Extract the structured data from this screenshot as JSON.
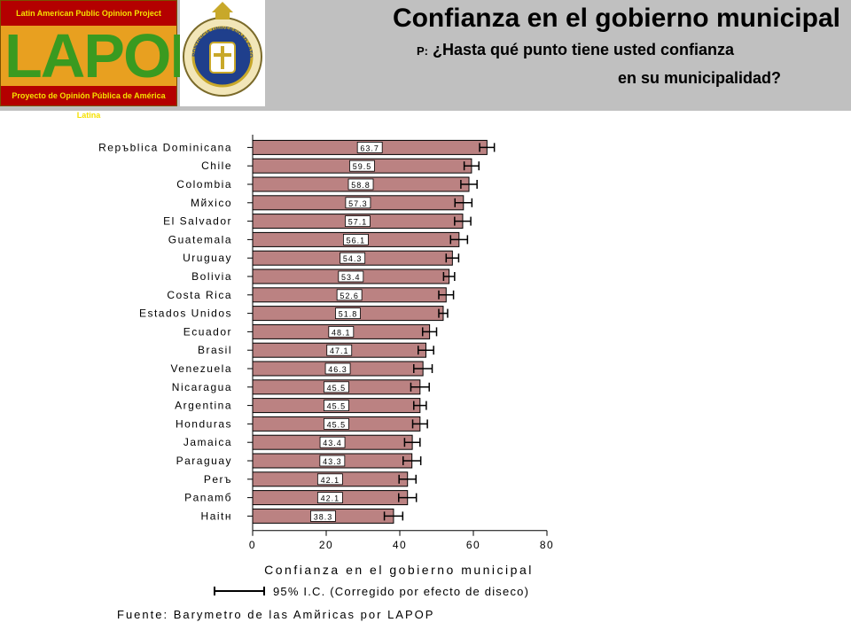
{
  "header": {
    "title": "Confianza en el gobierno municipal",
    "question_prefix": "P:",
    "question_line1": "¿Hasta qué punto tiene usted confianza",
    "question_line2": "en su municipalidad?",
    "lapop_top": "Latin American Public Opinion Project",
    "lapop_word": "LAPOP",
    "lapop_bottom": "Proyecto de Opinión Pública de América Latina",
    "seal_text": "PONTIFICIA UNIVERSIDAD CATOLICA DE CHILE"
  },
  "chart_data": {
    "type": "bar",
    "orientation": "horizontal",
    "categories": [
      "Repъblica Dominicana",
      "Chile",
      "Colombia",
      "Mйxico",
      "El Salvador",
      "Guatemala",
      "Uruguay",
      "Bolivia",
      "Costa Rica",
      "Estados Unidos",
      "Ecuador",
      "Brasil",
      "Venezuela",
      "Nicaragua",
      "Argentina",
      "Honduras",
      "Jamaica",
      "Paraguay",
      "Perъ",
      "Panamб",
      "Haitн"
    ],
    "values": [
      63.7,
      59.5,
      58.8,
      57.3,
      57.1,
      56.1,
      54.3,
      53.4,
      52.6,
      51.8,
      48.1,
      47.1,
      46.3,
      45.5,
      45.5,
      45.5,
      43.4,
      43.3,
      42.1,
      42.1,
      38.3
    ],
    "value_labels": [
      "63.7",
      "59.5",
      "58.8",
      "57.3",
      "57.1",
      "56.1",
      "54.3",
      "53.4",
      "52.6",
      "51.8",
      "48.1",
      "47.1",
      "46.3",
      "45.5",
      "45.5",
      "45.5",
      "43.4",
      "43.3",
      "42.1",
      "42.1",
      "38.3"
    ],
    "ci_low": [
      61.7,
      57.5,
      56.6,
      55.0,
      54.9,
      53.8,
      52.6,
      51.9,
      50.6,
      50.6,
      46.2,
      45.0,
      43.8,
      43.0,
      43.8,
      43.5,
      41.3,
      40.9,
      39.8,
      39.7,
      35.8
    ],
    "ci_high": [
      65.7,
      61.5,
      61.0,
      59.6,
      59.3,
      58.4,
      56.0,
      54.9,
      54.6,
      53.0,
      50.0,
      49.2,
      48.8,
      48.0,
      47.2,
      47.5,
      45.5,
      45.7,
      44.4,
      44.5,
      40.8
    ],
    "xlim": [
      0,
      80
    ],
    "x_ticks": [
      "0",
      "20",
      "40",
      "60",
      "80"
    ],
    "xlabel": "Confianza en el gobierno municipal",
    "legend_label": "95% I.C. (Corregido por efecto de diseсo)",
    "bar_color": "#bb8282",
    "source": "Fuente: Barуmetro de las Amйricas por LAPOP"
  }
}
